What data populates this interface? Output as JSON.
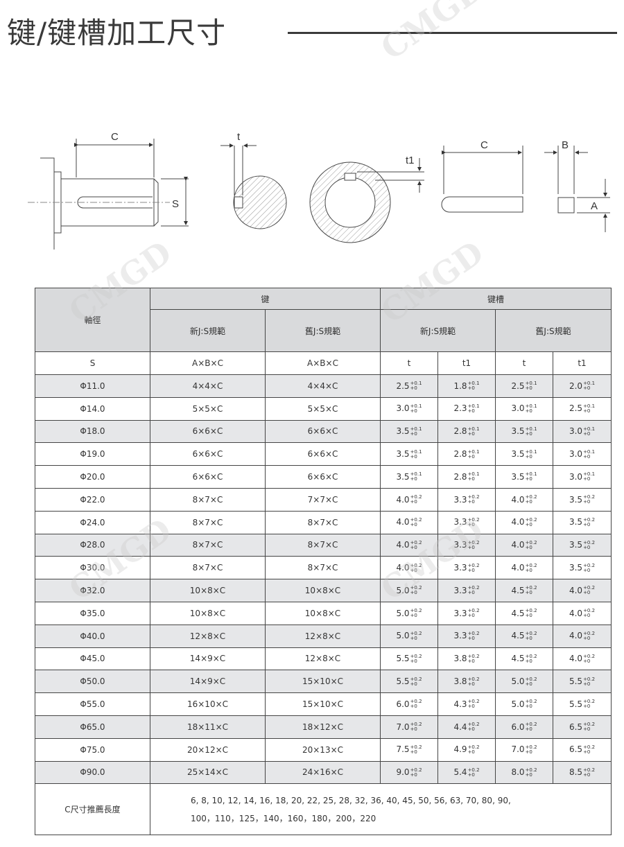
{
  "title": "键/键槽加工尺寸",
  "watermark": "CMGD",
  "diagram": {
    "labels": {
      "c1": "C",
      "s": "S",
      "t": "t",
      "t1": "t1",
      "c2": "C",
      "b": "B",
      "a": "A"
    }
  },
  "table": {
    "header": {
      "shaft": "軸徑",
      "key": "键",
      "keyway": "键槽",
      "new_js": "新J:S規範",
      "old_js": "舊J:S規範"
    },
    "units": [
      "S",
      "A×B×C",
      "A×B×C",
      "t",
      "t1",
      "t",
      "t1"
    ],
    "rows": [
      {
        "s": "Φ11.0",
        "k_new": "4×4×C",
        "k_old": "4×4×C",
        "t_new": "2.5",
        "t1_new": "1.8",
        "t_old": "2.5",
        "t1_old": "2.0",
        "tol": "+0.1",
        "shaded": true
      },
      {
        "s": "Φ14.0",
        "k_new": "5×5×C",
        "k_old": "5×5×C",
        "t_new": "3.0",
        "t1_new": "2.3",
        "t_old": "3.0",
        "t1_old": "2.5",
        "tol": "+0.1",
        "shaded": false
      },
      {
        "s": "Φ18.0",
        "k_new": "6×6×C",
        "k_old": "6×6×C",
        "t_new": "3.5",
        "t1_new": "2.8",
        "t_old": "3.5",
        "t1_old": "3.0",
        "tol": "+0.1",
        "shaded": true
      },
      {
        "s": "Φ19.0",
        "k_new": "6×6×C",
        "k_old": "6×6×C",
        "t_new": "3.5",
        "t1_new": "2.8",
        "t_old": "3.5",
        "t1_old": "3.0",
        "tol": "+0.1",
        "shaded": false
      },
      {
        "s": "Φ20.0",
        "k_new": "6×6×C",
        "k_old": "6×6×C",
        "t_new": "3.5",
        "t1_new": "2.8",
        "t_old": "3.5",
        "t1_old": "3.0",
        "tol": "+0.1",
        "shaded": false
      },
      {
        "s": "Φ22.0",
        "k_new": "8×7×C",
        "k_old": "7×7×C",
        "t_new": "4.0",
        "t1_new": "3.3",
        "t_old": "4.0",
        "t1_old": "3.5",
        "tol": "+0.2",
        "shaded": false
      },
      {
        "s": "Φ24.0",
        "k_new": "8×7×C",
        "k_old": "8×7×C",
        "t_new": "4.0",
        "t1_new": "3.3",
        "t_old": "4.0",
        "t1_old": "3.5",
        "tol": "+0.2",
        "shaded": false
      },
      {
        "s": "Φ28.0",
        "k_new": "8×7×C",
        "k_old": "8×7×C",
        "t_new": "4.0",
        "t1_new": "3.3",
        "t_old": "4.0",
        "t1_old": "3.5",
        "tol": "+0.2",
        "shaded": true
      },
      {
        "s": "Φ30.0",
        "k_new": "8×7×C",
        "k_old": "8×7×C",
        "t_new": "4.0",
        "t1_new": "3.3",
        "t_old": "4.0",
        "t1_old": "3.5",
        "tol": "+0.2",
        "shaded": false
      },
      {
        "s": "Φ32.0",
        "k_new": "10×8×C",
        "k_old": "10×8×C",
        "t_new": "5.0",
        "t1_new": "3.3",
        "t_old": "4.5",
        "t1_old": "4.0",
        "tol": "+0.2",
        "shaded": true
      },
      {
        "s": "Φ35.0",
        "k_new": "10×8×C",
        "k_old": "10×8×C",
        "t_new": "5.0",
        "t1_new": "3.3",
        "t_old": "4.5",
        "t1_old": "4.0",
        "tol": "+0.2",
        "shaded": false
      },
      {
        "s": "Φ40.0",
        "k_new": "12×8×C",
        "k_old": "12×8×C",
        "t_new": "5.0",
        "t1_new": "3.3",
        "t_old": "4.5",
        "t1_old": "4.0",
        "tol": "+0.2",
        "shaded": true
      },
      {
        "s": "Φ45.0",
        "k_new": "14×9×C",
        "k_old": "12×8×C",
        "t_new": "5.5",
        "t1_new": "3.8",
        "t_old": "4.5",
        "t1_old": "4.0",
        "tol": "+0.2",
        "shaded": false
      },
      {
        "s": "Φ50.0",
        "k_new": "14×9×C",
        "k_old": "15×10×C",
        "t_new": "5.5",
        "t1_new": "3.8",
        "t_old": "5.0",
        "t1_old": "5.5",
        "tol": "+0.2",
        "shaded": true
      },
      {
        "s": "Φ55.0",
        "k_new": "16×10×C",
        "k_old": "15×10×C",
        "t_new": "6.0",
        "t1_new": "4.3",
        "t_old": "5.0",
        "t1_old": "5.5",
        "tol": "+0.2",
        "shaded": false
      },
      {
        "s": "Φ65.0",
        "k_new": "18×11×C",
        "k_old": "18×12×C",
        "t_new": "7.0",
        "t1_new": "4.4",
        "t_old": "6.0",
        "t1_old": "6.5",
        "tol": "+0.2",
        "shaded": true
      },
      {
        "s": "Φ75.0",
        "k_new": "20×12×C",
        "k_old": "20×13×C",
        "t_new": "7.5",
        "t1_new": "4.9",
        "t_old": "7.0",
        "t1_old": "6.5",
        "tol": "+0.2",
        "shaded": false
      },
      {
        "s": "Φ90.0",
        "k_new": "25×14×C",
        "k_old": "24×16×C",
        "t_new": "9.0",
        "t1_new": "5.4",
        "t_old": "8.0",
        "t1_old": "8.5",
        "tol": "+0.2",
        "shaded": true
      }
    ],
    "tol_lower": "+0",
    "footer": {
      "label": "C尺寸推薦長度",
      "line1": "6, 8, 10, 12, 14, 16, 18, 20, 22, 25, 28, 32, 36, 40, 45, 50, 56, 63, 70, 80, 90,",
      "line2": "100，110，125，140，160，180，200，220"
    }
  }
}
